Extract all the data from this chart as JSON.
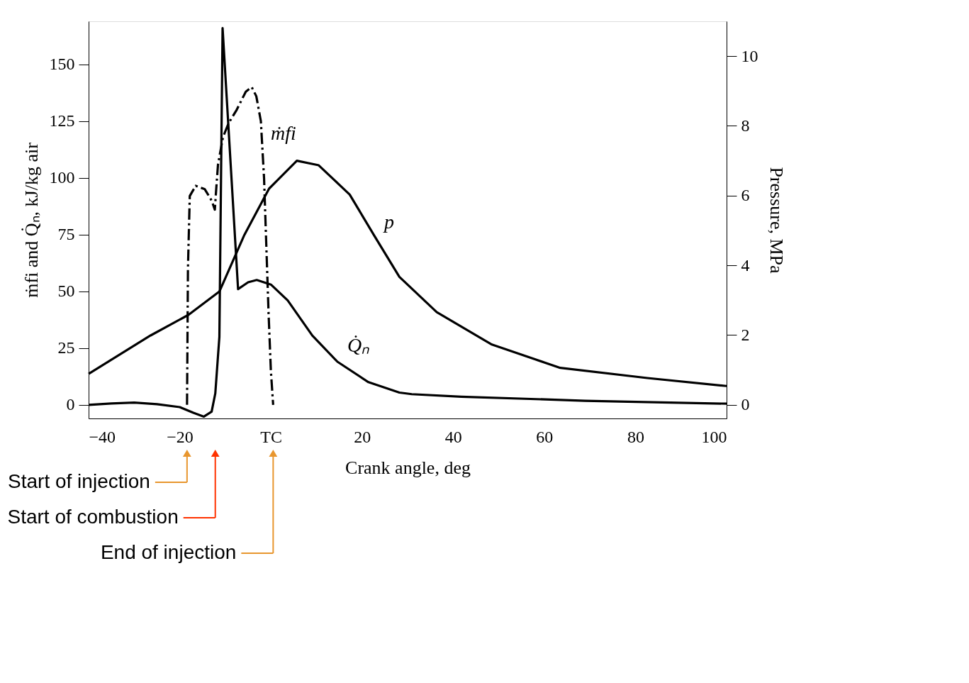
{
  "chart_data": {
    "type": "line",
    "xlabel": "Crank angle, deg",
    "ylabel": "ṁfi and Q̇ₙ, kJ/kg air",
    "y2label": "Pressure, MPa",
    "xlim": [
      -40,
      100
    ],
    "xticks": [
      -40,
      -20,
      {
        "value": 0,
        "label": "TC"
      },
      20,
      40,
      60,
      80,
      100
    ],
    "ylim": [
      -6,
      169
    ],
    "yticks": [
      0,
      25,
      50,
      75,
      100,
      125,
      150
    ],
    "y2lim": [
      -0.39,
      11.0
    ],
    "y2ticks": [
      0,
      2,
      4,
      6,
      8,
      10
    ],
    "grid": false,
    "legend": false,
    "marker": "none",
    "series": [
      {
        "name": "ṁfi",
        "color": "#000000",
        "line_style": "dashed",
        "x": [
          -18.4,
          -18.2,
          -17.8,
          -16.5,
          -14.5,
          -13,
          -12.3,
          -12,
          -11.6,
          -10.5,
          -9.3,
          -7.5,
          -5.5,
          -4.2,
          -3.2,
          -2.2,
          -1.5,
          -1,
          -0.5,
          0,
          0.5
        ],
        "values": [
          0,
          60,
          92,
          96.5,
          95,
          90,
          86,
          95,
          106,
          118,
          124,
          130,
          138,
          140,
          136,
          125,
          100,
          70,
          40,
          15,
          0
        ]
      },
      {
        "name": "Q̇ₙ",
        "color": "#000000",
        "line_style": "solid",
        "x": [
          -40,
          -35,
          -30,
          -25,
          -20,
          -17,
          -14.7,
          -13,
          -12.2,
          -11.3,
          -10.6,
          -7.2,
          -5,
          -3.1,
          0,
          3.7,
          9.1,
          14.6,
          21.4,
          28.2,
          30.9,
          41.8,
          69,
          100
        ],
        "values": [
          0,
          0.6,
          1,
          0.3,
          -1,
          -3.5,
          -5.2,
          -3,
          5,
          30,
          166,
          51,
          54,
          55,
          53,
          46,
          30.5,
          19,
          10,
          5.4,
          4.7,
          3.6,
          1.8,
          0.5
        ]
      },
      {
        "name": "p",
        "color": "#000000",
        "line_style": "solid",
        "axis": "y2",
        "x": [
          -40,
          -26.4,
          -18.1,
          -11.3,
          -5.9,
          -0.4,
          5.7,
          10.5,
          17.3,
          22.7,
          28.2,
          36.4,
          48.5,
          63.5,
          82.6,
          100
        ],
        "values": [
          0.89,
          1.99,
          2.58,
          3.25,
          4.85,
          6.2,
          7.0,
          6.87,
          6.03,
          4.85,
          3.67,
          2.66,
          1.73,
          1.06,
          0.77,
          0.54
        ]
      }
    ],
    "annotations": [
      "Start of injection",
      "Start of combustion",
      "End of injection"
    ]
  }
}
